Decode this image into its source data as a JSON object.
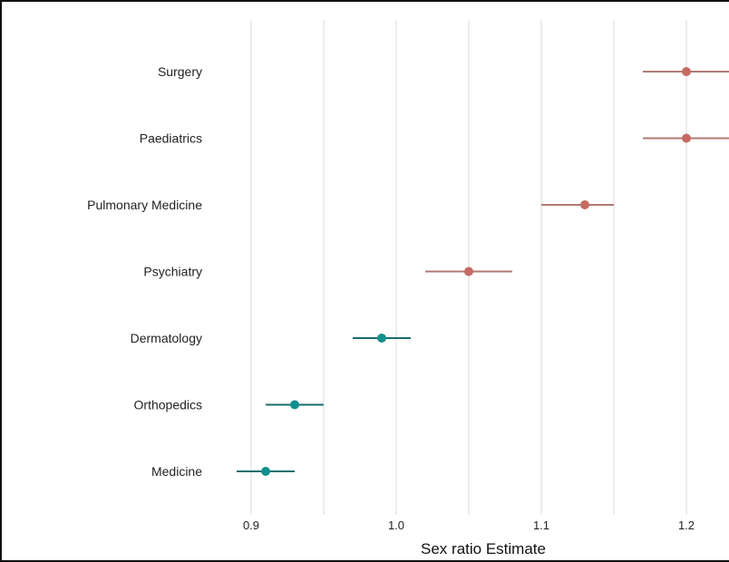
{
  "chart_data": {
    "type": "scatter",
    "xlabel": "Sex ratio Estimate",
    "xlim": [
      0.88,
      1.23
    ],
    "xticks": [
      0.9,
      1.0,
      1.1,
      1.2
    ],
    "xtick_labels": [
      "0.9",
      "1.0",
      "1.1",
      "1.2"
    ],
    "grid": true,
    "categories": [
      "Surgery",
      "Paediatrics",
      "Pulmonary Medicine",
      "Psychiatry",
      "Dermatology",
      "Orthopedics",
      "Medicine"
    ],
    "points": [
      {
        "category": "Surgery",
        "estimate": 1.2,
        "lower": 1.17,
        "upper": 1.23,
        "color": "#c56b63"
      },
      {
        "category": "Paediatrics",
        "estimate": 1.2,
        "lower": 1.17,
        "upper": 1.23,
        "color": "#c56b63"
      },
      {
        "category": "Pulmonary Medicine",
        "estimate": 1.13,
        "lower": 1.1,
        "upper": 1.15,
        "color": "#c56b63"
      },
      {
        "category": "Psychiatry",
        "estimate": 1.05,
        "lower": 1.02,
        "upper": 1.08,
        "color": "#c56b63"
      },
      {
        "category": "Dermatology",
        "estimate": 0.99,
        "lower": 0.97,
        "upper": 1.01,
        "color": "#12908e"
      },
      {
        "category": "Orthopedics",
        "estimate": 0.93,
        "lower": 0.91,
        "upper": 0.95,
        "color": "#12908e"
      },
      {
        "category": "Medicine",
        "estimate": 0.91,
        "lower": 0.89,
        "upper": 0.93,
        "color": "#12908e"
      }
    ],
    "line_colors": {
      "#c56b63": "#b07a73",
      "#12908e": "#1a6e6e"
    }
  }
}
